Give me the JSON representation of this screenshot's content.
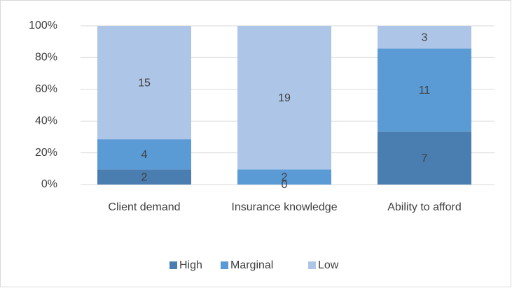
{
  "chart_data": {
    "type": "bar",
    "stacking": "percent",
    "categories": [
      "Client demand",
      "Insurance knowledge",
      "Ability to afford"
    ],
    "series": [
      {
        "name": "High",
        "color": "#4a7eb0",
        "values": [
          2,
          0,
          7
        ]
      },
      {
        "name": "Marginal",
        "color": "#5b9bd5",
        "values": [
          4,
          2,
          11
        ]
      },
      {
        "name": "Low",
        "color": "#adc5e7",
        "values": [
          15,
          19,
          3
        ]
      }
    ],
    "ylim": [
      0,
      100
    ],
    "yticks": [
      {
        "value": 0,
        "label": "0%"
      },
      {
        "value": 20,
        "label": "20%"
      },
      {
        "value": 40,
        "label": "40%"
      },
      {
        "value": 60,
        "label": "60%"
      },
      {
        "value": 80,
        "label": "80%"
      },
      {
        "value": 100,
        "label": "100%"
      }
    ],
    "grid": true,
    "legend": "bottom"
  }
}
